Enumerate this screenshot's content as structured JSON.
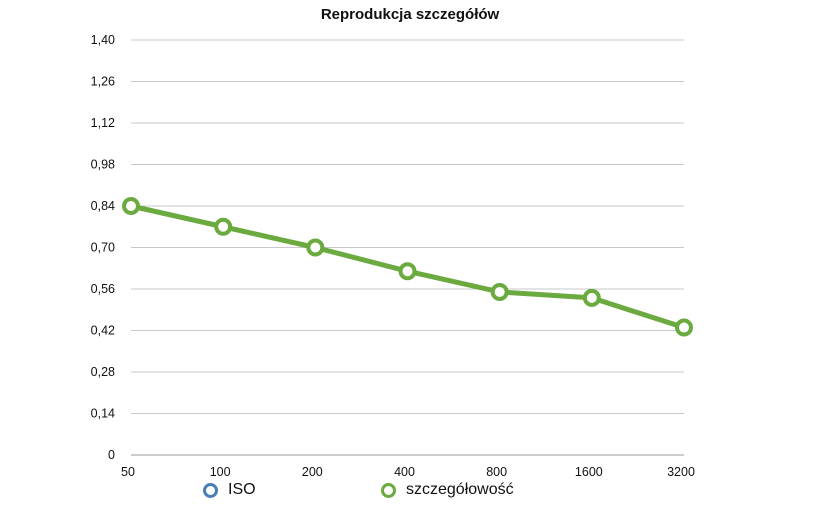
{
  "chart_data": {
    "type": "line",
    "title": "Reprodukcja szczegółów",
    "categories": [
      "50",
      "100",
      "200",
      "400",
      "800",
      "1600",
      "3200"
    ],
    "series": [
      {
        "name": "szczegółowość",
        "color": "#6aaa3e",
        "values": [
          0.84,
          0.77,
          0.7,
          0.62,
          0.55,
          0.53,
          0.43
        ]
      }
    ],
    "yticks": [
      "0",
      "0,14",
      "0,28",
      "0,42",
      "0,56",
      "0,70",
      "0,84",
      "0,98",
      "1,12",
      "1,26",
      "1,40"
    ],
    "ylim": [
      0,
      1.4
    ],
    "grid": true,
    "legend": {
      "placement": "bottom",
      "items": [
        {
          "label": "ISO",
          "color": "#4a7fb5"
        },
        {
          "label": "szczegółowość",
          "color": "#6aaa3e"
        }
      ]
    }
  }
}
